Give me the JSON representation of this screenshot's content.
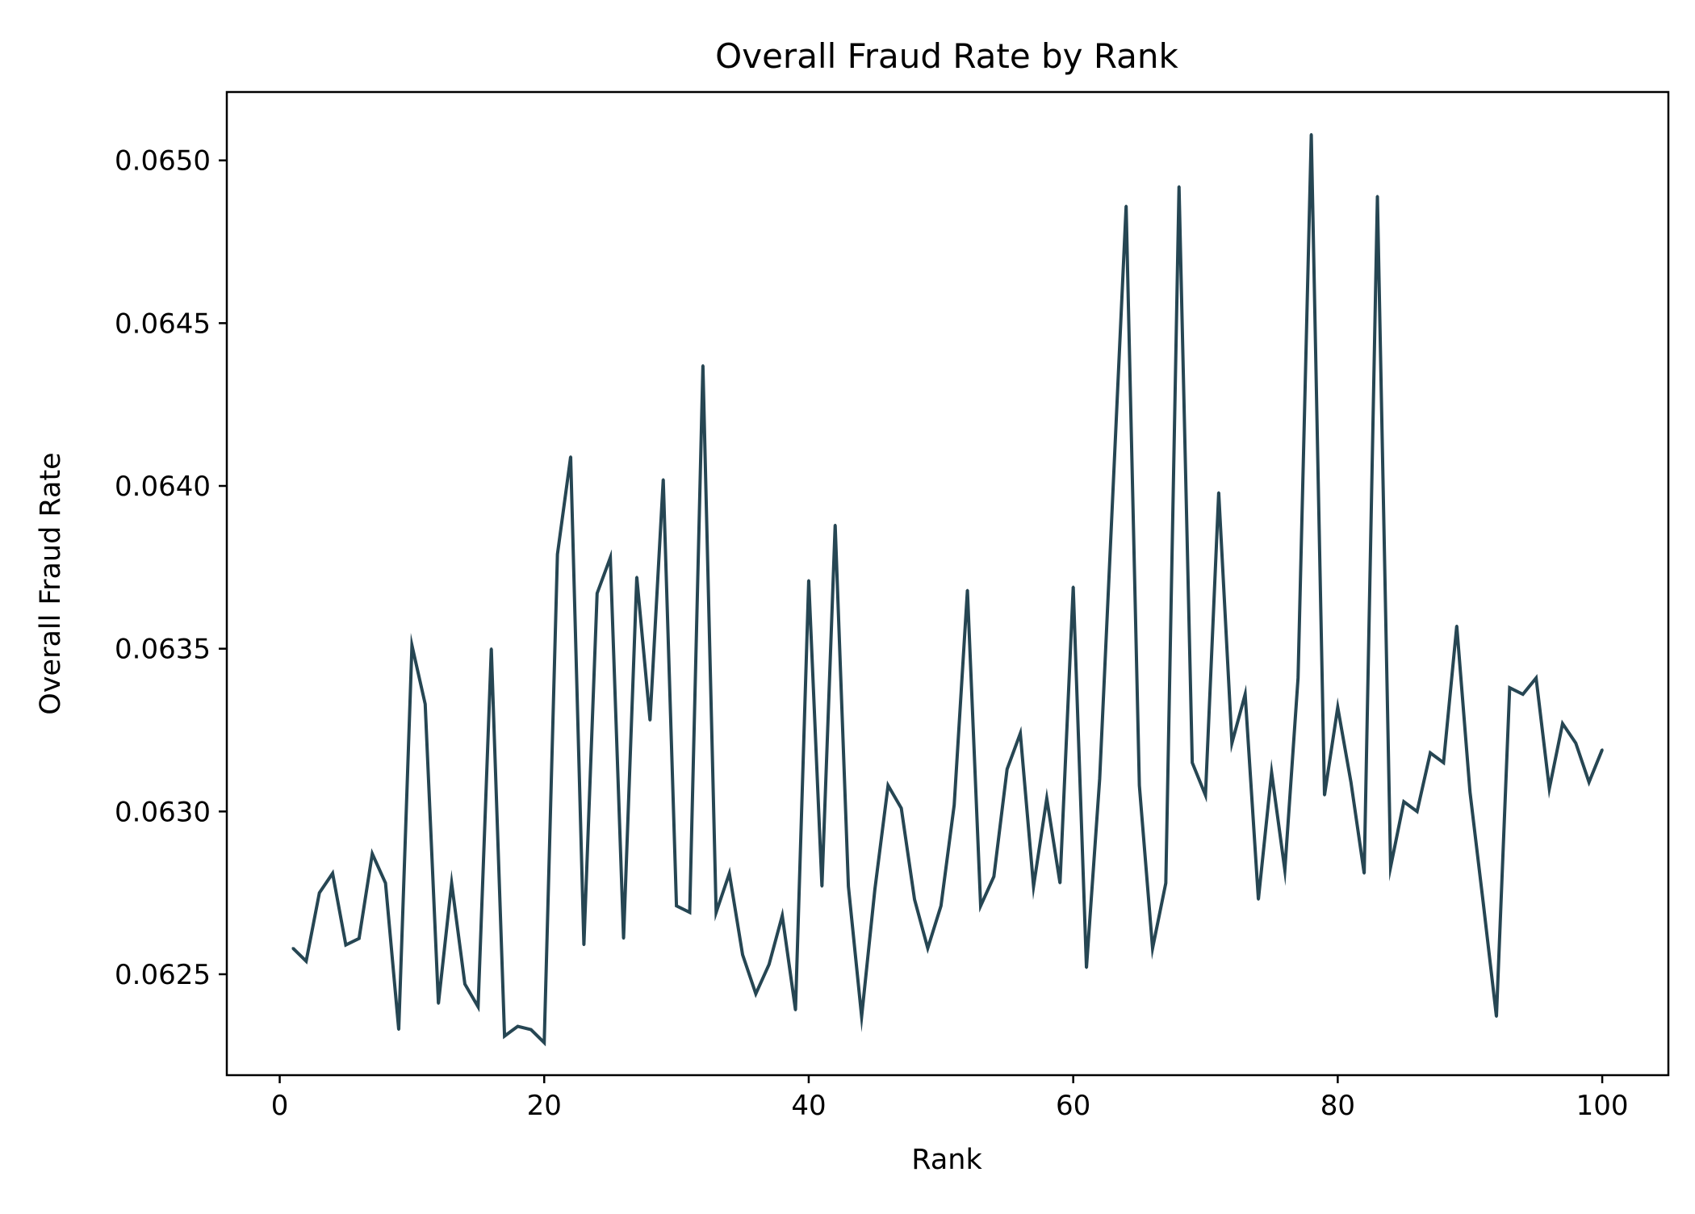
{
  "chart_data": {
    "type": "line",
    "title": "Overall Fraud Rate by Rank",
    "xlabel": "Rank",
    "ylabel": "Overall Fraud Rate",
    "xlim": [
      -4,
      105
    ],
    "ylim": [
      0.06219,
      0.06521
    ],
    "xticks": [
      0,
      20,
      40,
      60,
      80,
      100
    ],
    "yticks": [
      0.0625,
      0.063,
      0.0635,
      0.064,
      0.0645,
      0.065
    ],
    "xtick_labels": [
      "0",
      "20",
      "40",
      "60",
      "80",
      "100"
    ],
    "ytick_labels": [
      "0.0625",
      "0.0630",
      "0.0635",
      "0.0640",
      "0.0645",
      "0.0650"
    ],
    "grid": false,
    "legend": "none",
    "line_color": "#264653",
    "series": [
      {
        "x": [
          1,
          2,
          3,
          4,
          5,
          6,
          7,
          8,
          9,
          10,
          11,
          12,
          13,
          14,
          15,
          16,
          17,
          18,
          19,
          20,
          21,
          22,
          23,
          24,
          25,
          26,
          27,
          28,
          29,
          30,
          31,
          32,
          33,
          34,
          35,
          36,
          37,
          38,
          39,
          40,
          41,
          42,
          43,
          44,
          45,
          46,
          47,
          48,
          49,
          50,
          51,
          52,
          53,
          54,
          55,
          56,
          57,
          58,
          59,
          60,
          61,
          62,
          63,
          64,
          65,
          66,
          67,
          68,
          69,
          70,
          71,
          72,
          73,
          74,
          75,
          76,
          77,
          78,
          79,
          80,
          81,
          82,
          83,
          84,
          85,
          86,
          87,
          88,
          89,
          90,
          91,
          92,
          93,
          94,
          95,
          96,
          97,
          98,
          99,
          100
        ],
        "values": [
          0.06258,
          0.06254,
          0.06275,
          0.06281,
          0.06259,
          0.06261,
          0.06287,
          0.06278,
          0.06233,
          0.06351,
          0.06333,
          0.06241,
          0.06278,
          0.06247,
          0.0624,
          0.0635,
          0.06231,
          0.06234,
          0.06233,
          0.06229,
          0.06379,
          0.06409,
          0.06259,
          0.06367,
          0.06378,
          0.06261,
          0.06372,
          0.06328,
          0.06402,
          0.06271,
          0.06269,
          0.06437,
          0.06269,
          0.06281,
          0.06256,
          0.06244,
          0.06253,
          0.06268,
          0.06239,
          0.06371,
          0.06277,
          0.06388,
          0.06277,
          0.06237,
          0.06276,
          0.06308,
          0.06301,
          0.06273,
          0.06258,
          0.06271,
          0.06302,
          0.06368,
          0.06271,
          0.0628,
          0.06313,
          0.06324,
          0.06277,
          0.06304,
          0.06278,
          0.06369,
          0.06252,
          0.0631,
          0.06398,
          0.06486,
          0.06308,
          0.06258,
          0.06278,
          0.06492,
          0.06315,
          0.06305,
          0.06398,
          0.06321,
          0.06336,
          0.06273,
          0.06312,
          0.06282,
          0.06341,
          0.06508,
          0.06305,
          0.06332,
          0.06309,
          0.06281,
          0.06489,
          0.06283,
          0.06303,
          0.063,
          0.06318,
          0.06315,
          0.06357,
          0.06306,
          0.06272,
          0.06237,
          0.06338,
          0.06336,
          0.06341,
          0.06307,
          0.06327,
          0.06321,
          0.06309,
          0.06319
        ]
      }
    ]
  }
}
